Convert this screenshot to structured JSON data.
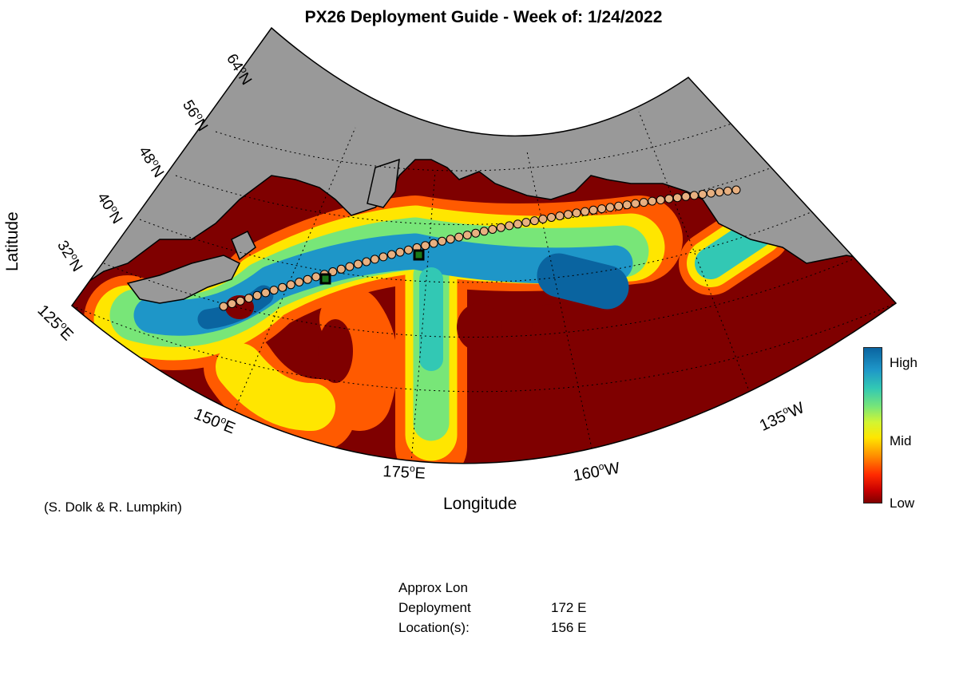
{
  "title": "PX26 Deployment Guide - Week of: 1/24/2022",
  "axes": {
    "xlabel": "Longitude",
    "ylabel": "Latitude"
  },
  "lat_labels": [
    {
      "value": "32",
      "hemi": "N"
    },
    {
      "value": "40",
      "hemi": "N"
    },
    {
      "value": "48",
      "hemi": "N"
    },
    {
      "value": "56",
      "hemi": "N"
    },
    {
      "value": "64",
      "hemi": "N"
    }
  ],
  "lon_labels": [
    {
      "value": "125",
      "hemi": "E"
    },
    {
      "value": "150",
      "hemi": "E"
    },
    {
      "value": "175",
      "hemi": "E"
    },
    {
      "value": "160",
      "hemi": "W"
    },
    {
      "value": "135",
      "hemi": "W"
    }
  ],
  "colorbar": {
    "high": "High",
    "mid": "Mid",
    "low": "Low"
  },
  "credit": "(S. Dolk & R. Lumpkin)",
  "deployment": {
    "header_line1": "Approx Lon",
    "header_line2": "Deployment",
    "header_line3": "Location(s):",
    "locations": [
      "172 E",
      "156 E"
    ]
  },
  "colors": {
    "ocean_low": "#7f0000",
    "land": "#999999",
    "high": "#0a64a0"
  }
}
